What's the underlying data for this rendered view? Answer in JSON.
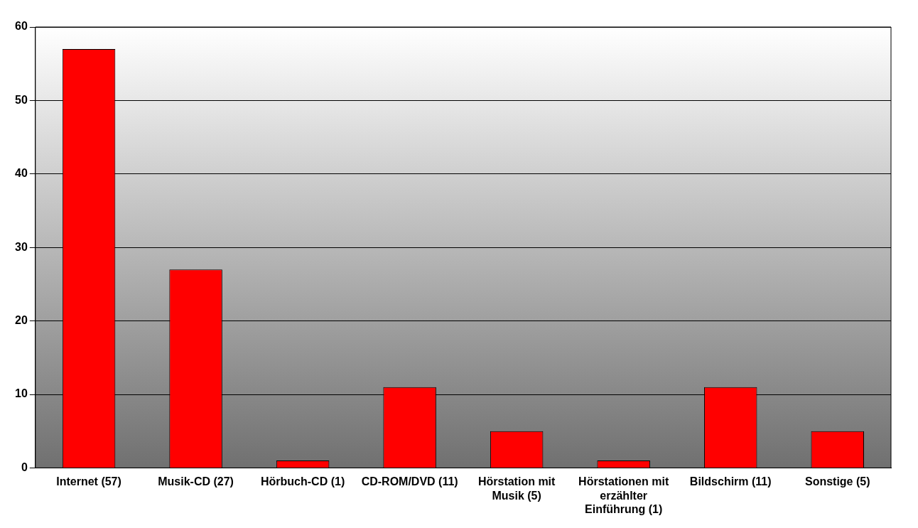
{
  "chart_data": {
    "type": "bar",
    "categories": [
      "Internet (57)",
      "Musik-CD (27)",
      "Hörbuch-CD (1)",
      "CD-ROM/DVD (11)",
      "Hörstation mit Musik (5)",
      "Hörstationen mit erzählter Einführung (1)",
      "Bildschirm (11)",
      "Sonstige (5)"
    ],
    "values": [
      57,
      27,
      1,
      11,
      5,
      1,
      11,
      5
    ],
    "color": "#ff0000",
    "ylim": [
      0,
      60
    ],
    "yticks": [
      0,
      10,
      20,
      30,
      40,
      50,
      60
    ],
    "grid": "y"
  }
}
